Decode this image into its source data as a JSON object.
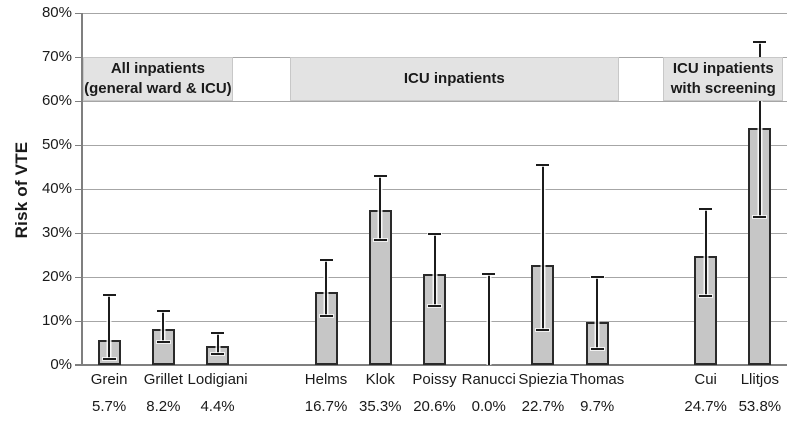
{
  "chart_data": {
    "type": "bar",
    "title": "",
    "ylabel": "Risk of VTE",
    "ylim": [
      0,
      80
    ],
    "yticks": [
      0,
      10,
      20,
      30,
      40,
      50,
      60,
      70,
      80
    ],
    "ytick_suffix": "%",
    "grid": true,
    "error_bars": true,
    "groups": [
      {
        "label_lines": [
          "All inpatients",
          "(general ward & ICU)"
        ],
        "bars": [
          {
            "name": "Grein",
            "value_label": "5.7%",
            "value": 5.7,
            "ci_low": 1.3,
            "ci_high": 16.0
          },
          {
            "name": "Grillet",
            "value_label": "8.2%",
            "value": 8.2,
            "ci_low": 5.3,
            "ci_high": 12.2
          },
          {
            "name": "Lodigiani",
            "value_label": "4.4%",
            "value": 4.4,
            "ci_low": 2.6,
            "ci_high": 7.2
          }
        ]
      },
      {
        "label_lines": [
          "ICU inpatients"
        ],
        "bars": [
          {
            "name": "Helms",
            "value_label": "16.7%",
            "value": 16.7,
            "ci_low": 11.2,
            "ci_high": 23.8
          },
          {
            "name": "Klok",
            "value_label": "35.3%",
            "value": 35.3,
            "ci_low": 28.5,
            "ci_high": 42.9
          },
          {
            "name": "Poissy",
            "value_label": "20.6%",
            "value": 20.6,
            "ci_low": 13.5,
            "ci_high": 29.8
          },
          {
            "name": "Ranucci",
            "value_label": "0.0%",
            "value": 0.0,
            "ci_low": 0.0,
            "ci_high": 20.6
          },
          {
            "name": "Spiezia",
            "value_label": "22.7%",
            "value": 22.7,
            "ci_low": 8.0,
            "ci_high": 45.4
          },
          {
            "name": "Thomas",
            "value_label": "9.7%",
            "value": 9.7,
            "ci_low": 3.6,
            "ci_high": 19.9
          }
        ]
      },
      {
        "label_lines": [
          "ICU inpatients",
          "with screening"
        ],
        "bars": [
          {
            "name": "Cui",
            "value_label": "24.7%",
            "value": 24.7,
            "ci_low": 15.7,
            "ci_high": 35.5
          },
          {
            "name": "Llitjos",
            "value_label": "53.8%",
            "value": 53.8,
            "ci_low": 33.6,
            "ci_high": 73.4
          }
        ]
      }
    ]
  }
}
